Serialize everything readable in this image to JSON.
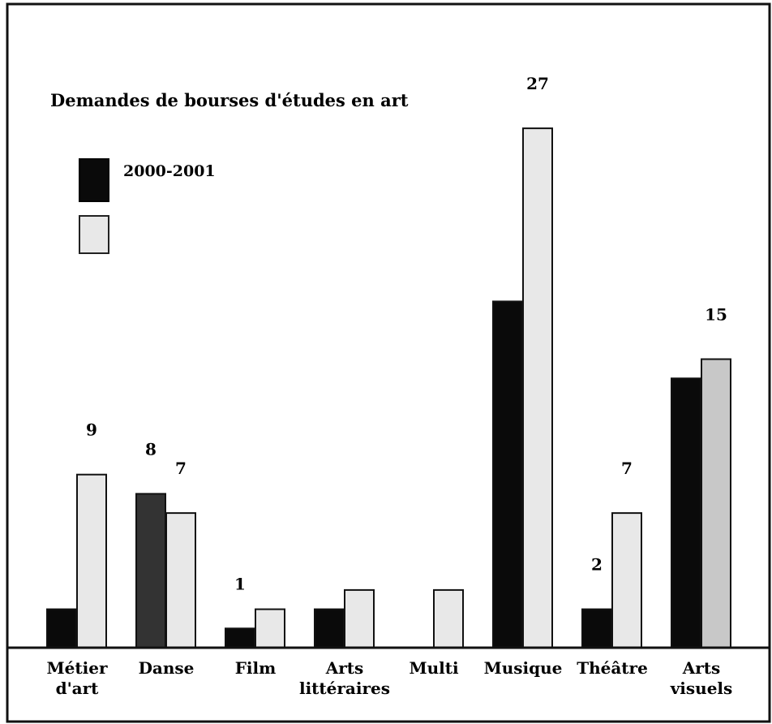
{
  "colors": {
    "series_a_fill": "#0a0a0a",
    "series_b_fill": "#e8e8e8",
    "frame": "#111111"
  },
  "chart_data": {
    "type": "bar",
    "title": "Demandes de bourses d'études en art",
    "xlabel": "",
    "ylabel": "",
    "ylim": [
      0,
      27
    ],
    "grid": false,
    "legend_position": "top-left",
    "categories": [
      [
        "Métier",
        "d'art"
      ],
      [
        "Danse"
      ],
      [
        "Film"
      ],
      [
        "Arts",
        "littéraires"
      ],
      [
        "Multi"
      ],
      [
        "Musique"
      ],
      [
        "Théâtre"
      ],
      [
        "Arts",
        "visuels"
      ]
    ],
    "series": [
      {
        "name": "2000-2001",
        "values": [
          2,
          8,
          1,
          2,
          0,
          18,
          2,
          14
        ],
        "colors": [
          "#0a0a0a",
          "#333333",
          "#0a0a0a",
          "#0a0a0a",
          "#0a0a0a",
          "#0a0a0a",
          "#0a0a0a",
          "#0a0a0a"
        ],
        "labels": [
          "",
          "8",
          "1",
          "",
          "",
          "",
          "2",
          ""
        ]
      },
      {
        "name": "",
        "values": [
          9,
          7,
          2,
          3,
          3,
          27,
          7,
          15
        ],
        "colors": [
          "#e8e8e8",
          "#e8e8e8",
          "#e8e8e8",
          "#e8e8e8",
          "#e8e8e8",
          "#e8e8e8",
          "#e8e8e8",
          "#c8c8c8"
        ],
        "labels": [
          "9",
          "7",
          "",
          "",
          "",
          "27",
          "7",
          "15"
        ]
      }
    ]
  }
}
